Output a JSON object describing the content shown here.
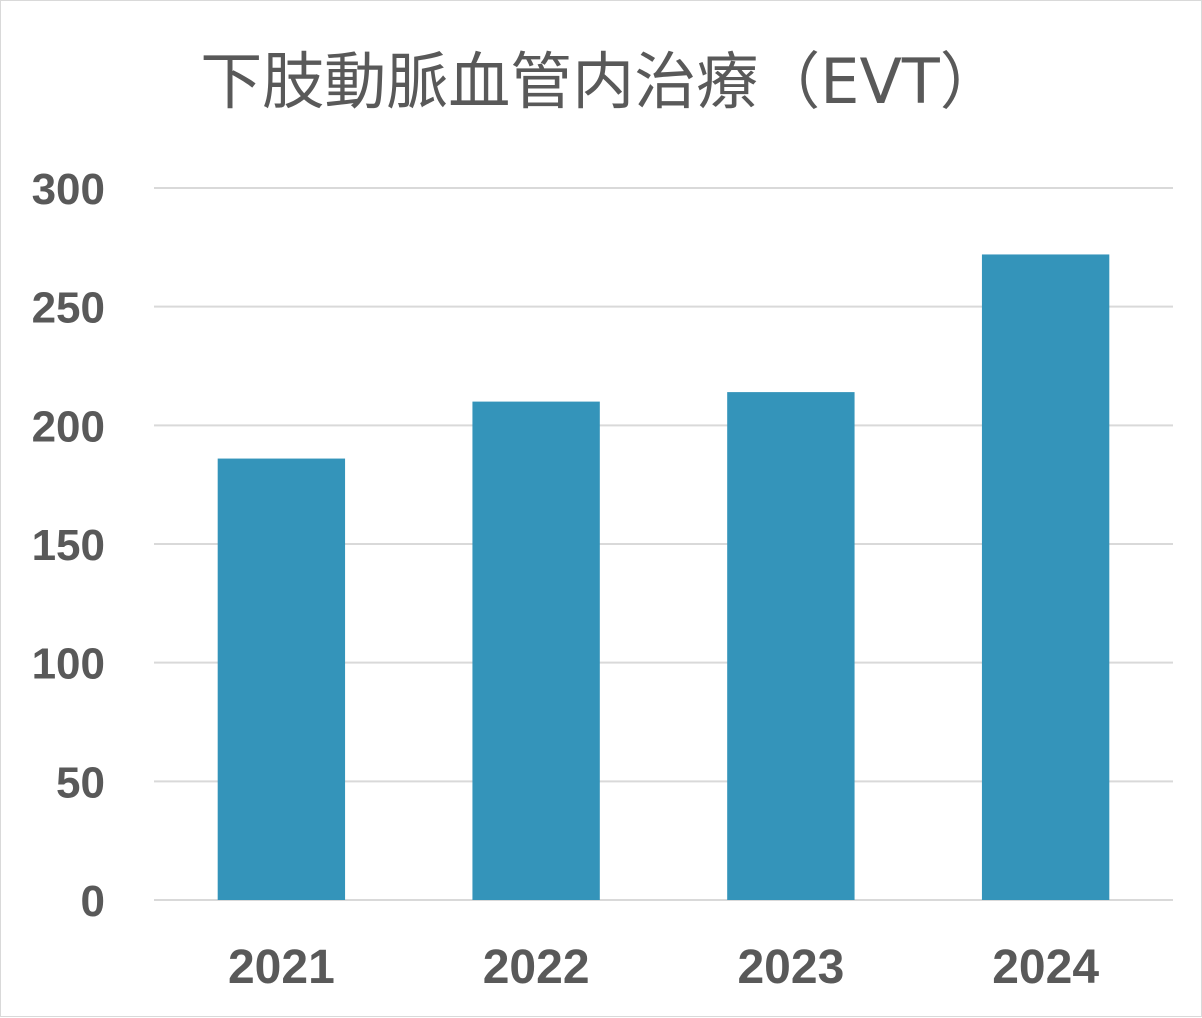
{
  "chart_data": {
    "type": "bar",
    "title": "下肢動脈血管内治療（EVT）",
    "categories": [
      "2021",
      "2022",
      "2023",
      "2024"
    ],
    "values": [
      186,
      210,
      214,
      272
    ],
    "ylim": [
      0,
      300
    ],
    "yticks": [
      0,
      50,
      100,
      150,
      200,
      250,
      300
    ],
    "grid": true,
    "bar_color": "#3494BA",
    "text_color": "#595959",
    "grid_color": "#D9D9D9"
  }
}
